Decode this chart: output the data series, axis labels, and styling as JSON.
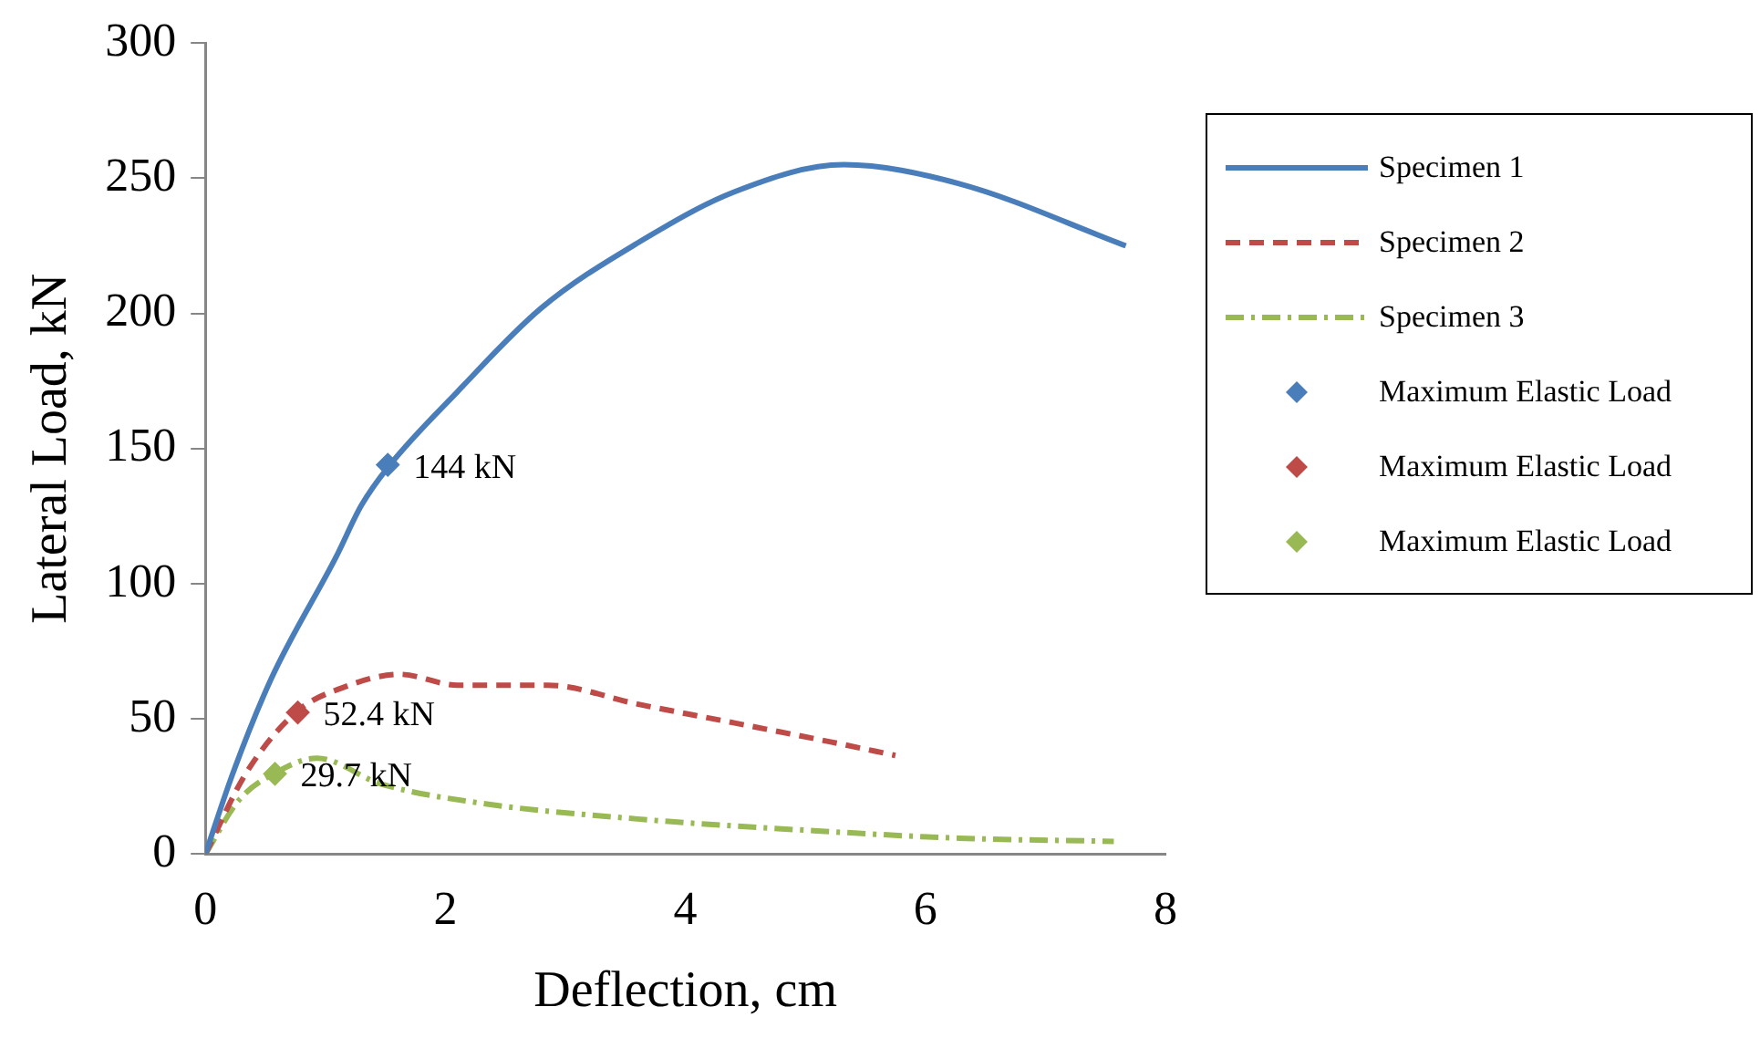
{
  "chart_data": {
    "type": "line",
    "xlabel": "Deflection, cm",
    "ylabel": "Lateral Load, kN",
    "xlim": [
      0,
      8
    ],
    "xticks": [
      0,
      2,
      4,
      6,
      8
    ],
    "ylim": [
      0,
      300
    ],
    "yticks": [
      0,
      50,
      100,
      150,
      200,
      250,
      300
    ],
    "grid": false,
    "legend": "right",
    "marker": "none",
    "series": [
      {
        "name": "Specimen 1",
        "color": "#4a7ebb",
        "line_style": "solid",
        "x": [
          0,
          0.23,
          0.55,
          1.09,
          1.3,
          1.52,
          2.1,
          2.8,
          3.6,
          4.41,
          5.32,
          6.28,
          7.67
        ],
        "values": [
          0,
          30,
          65,
          110,
          129,
          143,
          171,
          202,
          226,
          245,
          255,
          248,
          225
        ]
      },
      {
        "name": "Specimen 2",
        "color": "#be4b48",
        "line_style": "dashed",
        "x": [
          0,
          0.34,
          0.77,
          1.14,
          1.62,
          2.1,
          2.85,
          3.6,
          4.41,
          5.21,
          5.75
        ],
        "values": [
          0,
          30,
          53,
          61.5,
          66.5,
          62.5,
          62.5,
          55.5,
          48.5,
          41.5,
          36.5
        ]
      },
      {
        "name": "Specimen 3",
        "color": "#98b954",
        "line_style": "dashdot",
        "x": [
          0,
          0.28,
          0.58,
          0.93,
          1.46,
          2.27,
          3.6,
          5.21,
          6.28,
          7.57
        ],
        "values": [
          0,
          20,
          30,
          35.5,
          26,
          19,
          13,
          8.3,
          5.9,
          4.7
        ]
      },
      {
        "name": "Maximum Elastic Load",
        "type": "scatter",
        "marker": "diamond",
        "color": "#4a7ebb",
        "x": [
          1.52
        ],
        "values": [
          144
        ],
        "value_labels": [
          "144 kN"
        ]
      },
      {
        "name": "Maximum Elastic Load",
        "type": "scatter",
        "marker": "diamond",
        "color": "#be4b48",
        "x": [
          0.77
        ],
        "values": [
          52.4
        ],
        "value_labels": [
          "52.4 kN"
        ]
      },
      {
        "name": "Maximum Elastic Load",
        "type": "scatter",
        "marker": "diamond",
        "color": "#98b954",
        "x": [
          0.58
        ],
        "values": [
          29.7
        ],
        "value_labels": [
          "29.7 kN"
        ]
      }
    ]
  }
}
